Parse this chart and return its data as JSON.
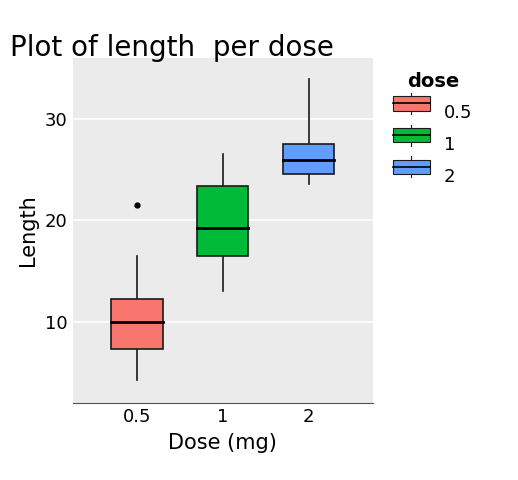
{
  "title": "Plot of length  per dose",
  "xlabel": "Dose (mg)",
  "ylabel": "Length",
  "legend_title": "dose",
  "legend_labels": [
    "0.5",
    "1",
    "2"
  ],
  "xtick_labels": [
    "0.5",
    "1",
    "2"
  ],
  "yticks": [
    10,
    20,
    30
  ],
  "ylim": [
    2,
    36
  ],
  "xlim": [
    0.25,
    3.75
  ],
  "background_color": "#EBEBEB",
  "grid_color": "#FFFFFF",
  "boxes": [
    {
      "x": 1,
      "q1": 7.3,
      "q2": 10.0,
      "q3": 12.25,
      "whisker_low": 4.3,
      "whisker_high": 16.5,
      "outliers": [
        21.5
      ],
      "color": "#F8766D",
      "edge_color": "#1a1a1a"
    },
    {
      "x": 2,
      "q1": 16.5,
      "q2": 19.25,
      "q3": 23.375,
      "whisker_low": 13.07,
      "whisker_high": 26.5,
      "outliers": [],
      "color": "#00BA38",
      "edge_color": "#1a1a1a"
    },
    {
      "x": 3,
      "q1": 24.575,
      "q2": 25.95,
      "q3": 27.5,
      "whisker_low": 23.6,
      "whisker_high": 33.9,
      "outliers": [],
      "color": "#619CFF",
      "edge_color": "#1a1a1a"
    }
  ],
  "box_width": 0.6,
  "line_width": 1.2,
  "title_fontsize": 20,
  "axis_label_fontsize": 15,
  "tick_fontsize": 13,
  "legend_fontsize": 13,
  "legend_title_fontsize": 14,
  "legend_colors": [
    "#F8766D",
    "#00BA38",
    "#619CFF"
  ]
}
